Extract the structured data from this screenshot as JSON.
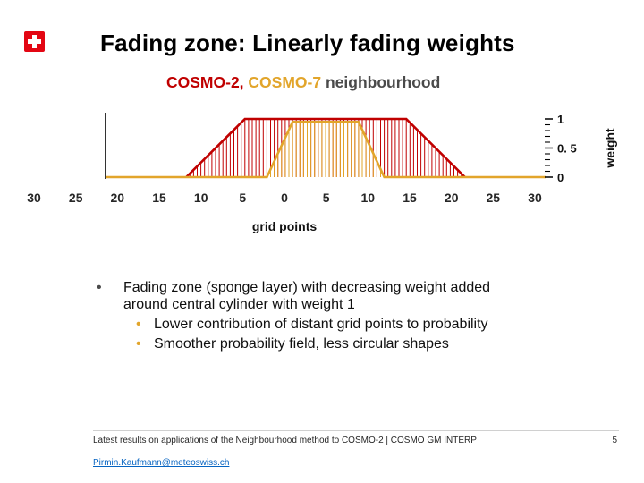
{
  "slide": {
    "title": "Fading zone: Linearly fading weights",
    "subtitle": {
      "cosmo2": "COSMO-2,",
      "cosmo7": "COSMO-7",
      "rest": "neighbourhood"
    },
    "bullets": {
      "marker": "•",
      "main": "Fading zone (sponge layer) with decreasing weight added around central cylinder with weight 1",
      "sub": [
        "Lower contribution of distant grid points to probability",
        "Smoother probability field, less circular shapes"
      ]
    },
    "footer": {
      "text": "Latest results on applications of the Neighbourhood method to COSMO-2 | COSMO GM INTERP",
      "page_number": "5",
      "email": "Pirmin.Kaufmann@meteoswiss.ch"
    },
    "colors": {
      "red": "#c00000",
      "orange": "#e2a52b",
      "link_blue": "#0563c1",
      "flag_red": "#e30613"
    }
  },
  "chart_data": {
    "type": "area",
    "title": "",
    "xlabel": "grid points",
    "ylabel": "weight",
    "x_range": [
      -30,
      30
    ],
    "y_range": [
      0,
      1
    ],
    "x_tick_labels": [
      "30",
      "25",
      "20",
      "15",
      "10",
      "5",
      "0",
      "5",
      "10",
      "15",
      "20",
      "25",
      "30"
    ],
    "y_ticks": [
      1,
      0.5,
      0
    ],
    "y_tick_labels": [
      "1",
      "0. 5",
      "0"
    ],
    "grid": false,
    "legend": false,
    "hatch_step": 0.5,
    "series": [
      {
        "key": "cosmo7",
        "name": "COSMO-7 neighbourhood weight",
        "color": "#c00000",
        "points": [
          [
            -19,
            0
          ],
          [
            -11,
            1
          ],
          [
            11,
            1
          ],
          [
            19,
            0
          ]
        ]
      },
      {
        "key": "cosmo2",
        "name": "COSMO-2 neighbourhood weight",
        "color": "#e2a52b",
        "points": [
          [
            -30,
            0
          ],
          [
            -8,
            0
          ],
          [
            -4.5,
            0.95
          ],
          [
            4.5,
            0.95
          ],
          [
            8,
            0
          ],
          [
            30,
            0
          ]
        ]
      }
    ]
  }
}
